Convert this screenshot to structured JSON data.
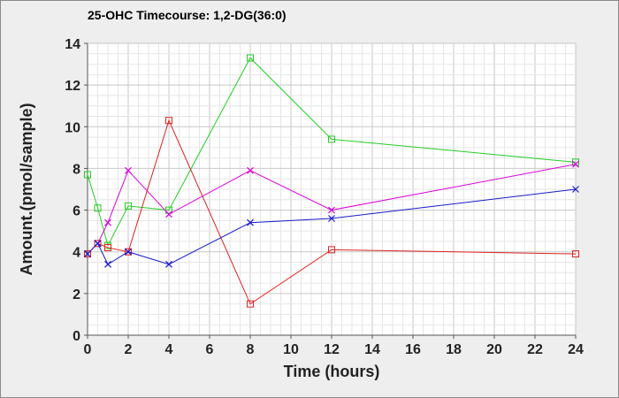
{
  "chart_data": {
    "type": "line",
    "title": "25-OHC Timecourse: 1,2-DG(36:0)",
    "xlabel": "Time (hours)",
    "ylabel": "Amount.(pmol/sample)",
    "xlim": [
      0,
      24
    ],
    "ylim": [
      0,
      14
    ],
    "xticks": [
      0,
      2,
      4,
      6,
      8,
      10,
      12,
      14,
      16,
      18,
      20,
      22,
      24
    ],
    "yticks": [
      0,
      2,
      4,
      6,
      8,
      10,
      12,
      14
    ],
    "grid": true,
    "legend": "none",
    "series": [
      {
        "color": "#22cc22",
        "marker": "square",
        "x": [
          0,
          0.5,
          1,
          2,
          4,
          8,
          12,
          24
        ],
        "y": [
          7.7,
          6.1,
          4.3,
          6.2,
          6.0,
          13.3,
          9.4,
          8.3
        ]
      },
      {
        "color": "#dd00dd",
        "marker": "x",
        "x": [
          0,
          0.5,
          1,
          2,
          4,
          8,
          12,
          24
        ],
        "y": [
          3.9,
          4.4,
          5.4,
          7.9,
          5.8,
          7.9,
          6.0,
          8.2
        ]
      },
      {
        "color": "#dd2222",
        "marker": "square",
        "x": [
          0,
          0.5,
          1,
          2,
          4,
          8,
          12,
          24
        ],
        "y": [
          3.9,
          4.4,
          4.2,
          4.0,
          10.3,
          1.5,
          4.1,
          3.9
        ]
      },
      {
        "color": "#1818cc",
        "marker": "x",
        "x": [
          0,
          0.5,
          1,
          2,
          4,
          8,
          12,
          24
        ],
        "y": [
          3.9,
          4.4,
          3.4,
          4.0,
          3.4,
          5.4,
          5.6,
          7.0
        ]
      }
    ]
  }
}
